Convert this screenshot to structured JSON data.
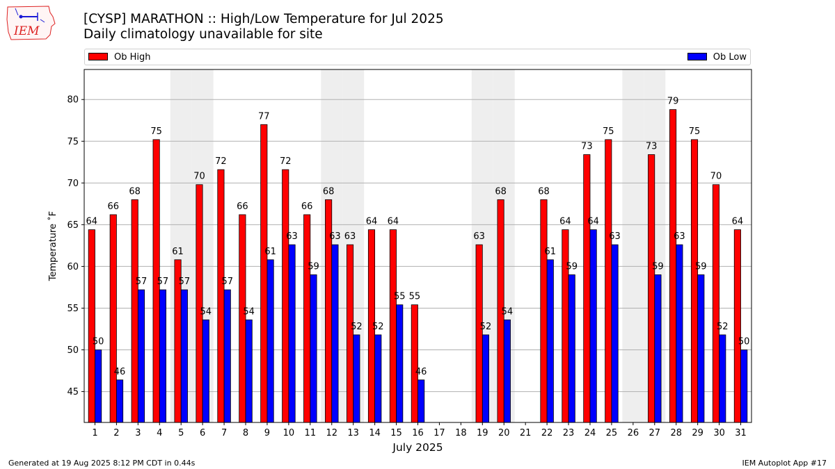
{
  "logo": {
    "text": "IEM"
  },
  "title_line1": "[CYSP] MARATHON :: High/Low Temperature for Jul 2025",
  "title_line2": "Daily climatology unavailable for site",
  "colors": {
    "high": "#ff0000",
    "low": "#0000ff",
    "weekend_band": "#eeeeee",
    "grid": "#b0b0b0"
  },
  "footer": {
    "left": "Generated at 19 Aug 2025 8:12 PM CDT in 0.44s",
    "right": "IEM Autoplot App #17"
  },
  "chart_data": {
    "type": "bar",
    "xlabel": "July 2025",
    "ylabel": "Temperature ˚F",
    "ylim": [
      41.3,
      83.6
    ],
    "yticks": [
      45,
      50,
      55,
      60,
      65,
      70,
      75,
      80
    ],
    "grid": true,
    "legend_placement": "top",
    "categories": [
      "1",
      "2",
      "3",
      "4",
      "5",
      "6",
      "7",
      "8",
      "9",
      "10",
      "11",
      "12",
      "13",
      "14",
      "15",
      "16",
      "17",
      "18",
      "19",
      "20",
      "21",
      "22",
      "23",
      "24",
      "25",
      "26",
      "27",
      "28",
      "29",
      "30",
      "31"
    ],
    "shaded_days": [
      5,
      6,
      12,
      13,
      19,
      20,
      26,
      27
    ],
    "series": [
      {
        "name": "Ob High",
        "color": "#ff0000",
        "values": [
          64.4,
          66.2,
          68.0,
          75.2,
          60.8,
          69.8,
          71.6,
          66.2,
          77.0,
          71.6,
          66.2,
          68.0,
          62.6,
          64.4,
          64.4,
          55.4,
          null,
          null,
          62.6,
          68.0,
          null,
          68.0,
          64.4,
          73.4,
          75.2,
          null,
          73.4,
          78.8,
          75.2,
          69.8,
          64.4
        ],
        "labels": [
          "64",
          "66",
          "68",
          "75",
          "61",
          "70",
          "72",
          "66",
          "77",
          "72",
          "66",
          "68",
          "63",
          "64",
          "64",
          "55",
          "",
          "",
          "63",
          "68",
          "",
          "68",
          "64",
          "73",
          "75",
          "",
          "73",
          "79",
          "75",
          "70",
          "64"
        ]
      },
      {
        "name": "Ob Low",
        "color": "#0000ff",
        "values": [
          50.0,
          46.4,
          57.2,
          57.2,
          57.2,
          53.6,
          57.2,
          53.6,
          60.8,
          62.6,
          59.0,
          62.6,
          51.8,
          51.8,
          55.4,
          46.4,
          null,
          null,
          51.8,
          53.6,
          null,
          60.8,
          59.0,
          64.4,
          62.6,
          null,
          59.0,
          62.6,
          59.0,
          51.8,
          50.0
        ],
        "labels": [
          "50",
          "46",
          "57",
          "57",
          "57",
          "54",
          "57",
          "54",
          "61",
          "63",
          "59",
          "63",
          "52",
          "52",
          "55",
          "46",
          "",
          "",
          "52",
          "54",
          "",
          "61",
          "59",
          "64",
          "63",
          "",
          "59",
          "63",
          "59",
          "52",
          "50"
        ]
      }
    ]
  }
}
